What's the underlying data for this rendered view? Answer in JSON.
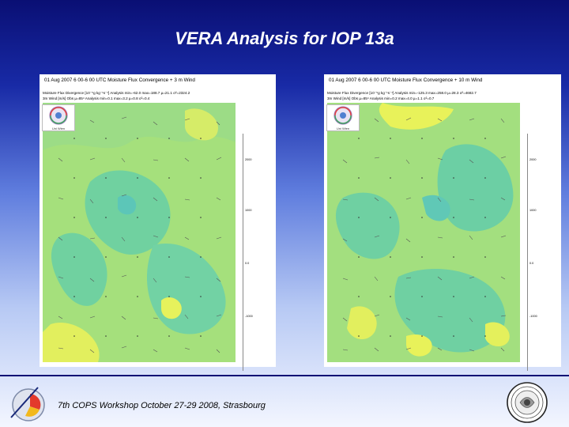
{
  "slide": {
    "title": "VERA Analysis for IOP 13a",
    "footer": "7th COPS Workshop  October 27-29 2008, Strasbourg"
  },
  "panels": [
    {
      "title": "01  Aug  2007 6 00-6 00 UTC Moisture Flux Convergence + 3  m Wind",
      "line1": "Moisture Flux Divergence [10⁻⁵g kg⁻¹s⁻¹] Analysis  min=-62.0  max=188.7  µ=21.1   σ²=2324.2",
      "line2": "3m Wind [m/s]  Obs  µ=85⁴ Analysis  min=0.1  max=3.2  µ=0.8 σ²=0.4",
      "scale_ticks": [
        "2000",
        "1000",
        "0.0",
        "-1000"
      ],
      "logo_label": "Uni Wien"
    },
    {
      "title": "01  Aug  2007 6 00-6 00 UTC Moisture Flux Convergence + 10  m Wind",
      "line1": "Moisture Flux Divergence [10⁻⁵g kg⁻¹s⁻¹] Analysis  min=-125.3  max=258.0  µ=28.3  σ²=4682.7",
      "line2": "3m Wind [m/s]  Obs  µ=85⁴ Analysis  min=0.2  max=4.0  µ=1.1  σ²=0.7",
      "scale_ticks": [
        "2000",
        "1000",
        "0.0",
        "-1000"
      ],
      "logo_label": "Uni Wien"
    }
  ],
  "colors": {
    "map_base": "#a5e07c",
    "map_green": "#6fd0a2",
    "map_yellow": "#e8f25a",
    "map_teal": "#67c7b6"
  }
}
